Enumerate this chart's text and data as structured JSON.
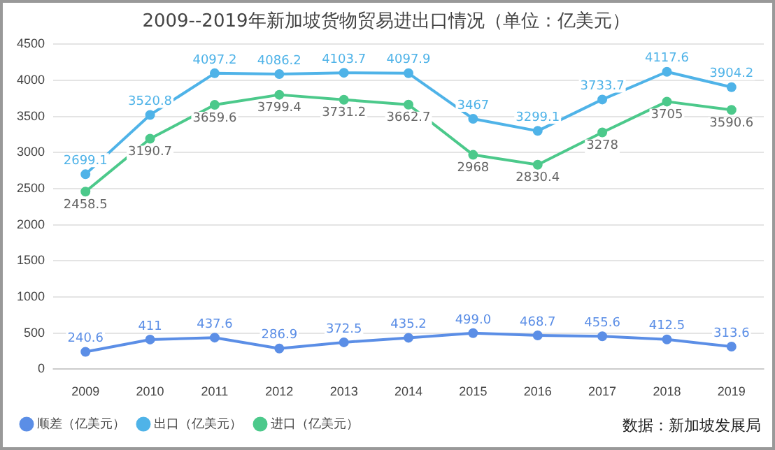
{
  "chart_data": {
    "type": "line",
    "title": "2009--2019年新加坡货物贸易进出口情况（单位：亿美元）",
    "categories": [
      "2009",
      "2010",
      "2011",
      "2012",
      "2013",
      "2014",
      "2015",
      "2016",
      "2017",
      "2018",
      "2019"
    ],
    "series": [
      {
        "name": "顺差（亿美元）",
        "color": "#5b8ee6",
        "values": [
          240.6,
          411,
          437.6,
          286.9,
          372.5,
          435.2,
          499.0,
          468.7,
          455.6,
          412.5,
          313.6
        ],
        "value_labels": [
          "240.6",
          "411",
          "437.6",
          "286.9",
          "372.5",
          "435.2",
          "499.0",
          "468.7",
          "455.6",
          "412.5",
          "313.6"
        ]
      },
      {
        "name": "出口（亿美元）",
        "color": "#4fb3e8",
        "values": [
          2699.1,
          3520.8,
          4097.2,
          4086.2,
          4103.7,
          4097.9,
          3467,
          3299.1,
          3733.7,
          4117.6,
          3904.2
        ],
        "value_labels": [
          "2699.1",
          "3520.8",
          "4097.2",
          "4086.2",
          "4103.7",
          "4097.9",
          "3467",
          "3299.1",
          "3733.7",
          "4117.6",
          "3904.2"
        ]
      },
      {
        "name": "进口（亿美元）",
        "color": "#4cc98b",
        "values": [
          2458.5,
          3190.7,
          3659.6,
          3799.4,
          3731.2,
          3662.7,
          2968,
          2830.4,
          3278,
          3705,
          3590.6
        ],
        "value_labels": [
          "2458.5",
          "3190.7",
          "3659.6",
          "3799.4",
          "3731.2",
          "3662.7",
          "2968",
          "2830.4",
          "3278",
          "3705",
          "3590.6"
        ]
      }
    ],
    "ylim": [
      0,
      4500
    ],
    "yticks": [
      0,
      500,
      1000,
      1500,
      2000,
      2500,
      3000,
      3500,
      4000,
      4500
    ],
    "grid": "y",
    "legend": "bottom",
    "marker": "circle",
    "line_style": "solid",
    "annotations": [
      "数据：新加坡发展局"
    ]
  }
}
